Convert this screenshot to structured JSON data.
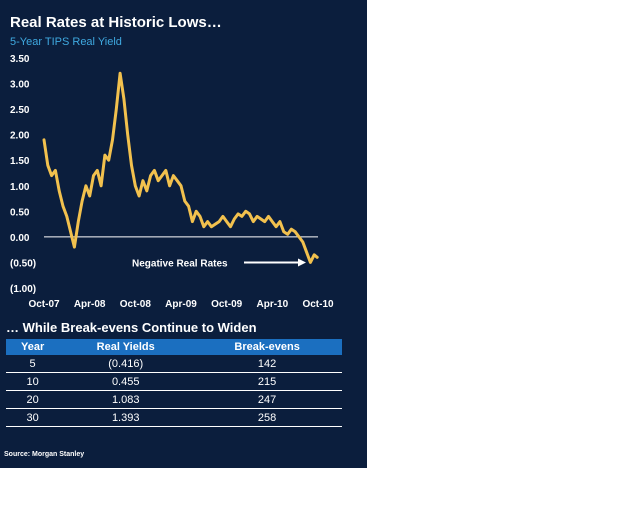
{
  "header": {
    "title": "Real Rates at Historic Lows…",
    "subtitle": "5-Year TIPS Real Yield"
  },
  "chart_data": {
    "type": "line",
    "title": "Real Rates at Historic Lows…",
    "subtitle": "5-Year TIPS Real Yield",
    "ylabel": "",
    "xlabel": "",
    "ylim": [
      -1.0,
      3.5
    ],
    "y_ticks": [
      3.5,
      3.0,
      2.5,
      2.0,
      1.5,
      1.0,
      0.5,
      0.0,
      -0.5,
      -1.0
    ],
    "y_tick_labels": [
      "3.50",
      "3.00",
      "2.50",
      "2.00",
      "1.50",
      "1.00",
      "0.50",
      "0.00",
      "(0.50)",
      "(1.00)"
    ],
    "x_tick_labels": [
      "Oct-07",
      "Apr-08",
      "Oct-08",
      "Apr-09",
      "Oct-09",
      "Apr-10",
      "Oct-10"
    ],
    "x_range_months": [
      0,
      36
    ],
    "zero_line": true,
    "annotation": "Negative Real Rates",
    "series": [
      {
        "name": "5-Year TIPS Real Yield",
        "color": "#f2c14e",
        "x": [
          0,
          0.5,
          1,
          1.5,
          2,
          2.5,
          3,
          3.5,
          4,
          4.5,
          5,
          5.5,
          6,
          6.5,
          7,
          7.5,
          8,
          8.5,
          9,
          9.5,
          10,
          10.5,
          11,
          11.5,
          12,
          12.5,
          13,
          13.5,
          14,
          14.5,
          15,
          15.5,
          16,
          16.5,
          17,
          17.5,
          18,
          18.5,
          19,
          19.5,
          20,
          20.5,
          21,
          21.5,
          22,
          22.5,
          23,
          23.5,
          24,
          24.5,
          25,
          25.5,
          26,
          26.5,
          27,
          27.5,
          28,
          28.5,
          29,
          29.5,
          30,
          30.5,
          31,
          31.5,
          32,
          32.5,
          33,
          33.5,
          34,
          34.5,
          35,
          35.5,
          35.9
        ],
        "values": [
          1.9,
          1.4,
          1.2,
          1.3,
          0.9,
          0.6,
          0.4,
          0.1,
          -0.2,
          0.3,
          0.7,
          1.0,
          0.8,
          1.2,
          1.3,
          1.0,
          1.6,
          1.5,
          1.9,
          2.5,
          3.2,
          2.7,
          2.0,
          1.4,
          1.0,
          0.8,
          1.1,
          0.9,
          1.2,
          1.3,
          1.1,
          1.2,
          1.3,
          1.0,
          1.2,
          1.1,
          1.0,
          0.7,
          0.6,
          0.3,
          0.5,
          0.4,
          0.2,
          0.3,
          0.2,
          0.25,
          0.3,
          0.4,
          0.3,
          0.2,
          0.35,
          0.45,
          0.4,
          0.5,
          0.45,
          0.3,
          0.4,
          0.35,
          0.3,
          0.4,
          0.3,
          0.2,
          0.3,
          0.1,
          0.05,
          0.15,
          0.1,
          0.0,
          -0.1,
          -0.3,
          -0.5,
          -0.35,
          -0.4
        ]
      }
    ]
  },
  "table": {
    "title": "… While Break-evens Continue to Widen",
    "headers": [
      "Year",
      "Real Yields",
      "Break-evens"
    ],
    "rows": [
      [
        "5",
        "(0.416)",
        "142"
      ],
      [
        "10",
        "0.455",
        "215"
      ],
      [
        "20",
        "1.083",
        "247"
      ],
      [
        "30",
        "1.393",
        "258"
      ]
    ]
  },
  "footer": {
    "source": "Source: Morgan Stanley"
  },
  "colors": {
    "background": "#0b1e3d",
    "line": "#f2c14e",
    "header_fill": "#1b6fc0",
    "subtitle": "#3fa9e0"
  }
}
